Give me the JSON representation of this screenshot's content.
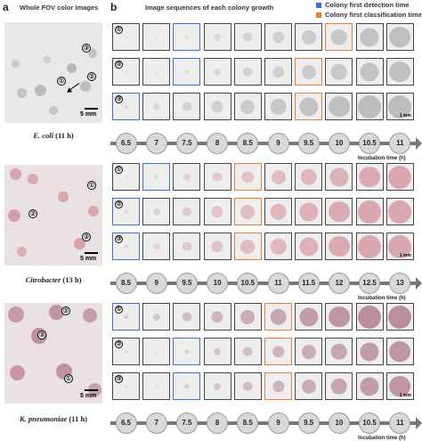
{
  "panel_a": {
    "letter": "a",
    "title": "Whole FOV color images"
  },
  "panel_b": {
    "letter": "b",
    "title": "Image sequences of each colony growth"
  },
  "legend": [
    {
      "label": "Colony first detection time",
      "color": "#3a6fd6"
    },
    {
      "label": "Colony first classification time",
      "color": "#ef7b2c"
    }
  ],
  "scale_bar": "5 mm",
  "tile_scale": "1 mm",
  "incubation_label": "Incubation time (h)",
  "row_markers": [
    "①",
    "②",
    "③"
  ],
  "sections": [
    {
      "organism": "E. coli",
      "time": "(11 h)",
      "times": [
        "6.5",
        "7",
        "7.5",
        "8",
        "8.5",
        "9",
        "9.5",
        "10",
        "10.5",
        "11"
      ],
      "detect_index": [
        2,
        2,
        0
      ],
      "classify_index": [
        7,
        6,
        6
      ],
      "colony_color": "#b9b9b9"
    },
    {
      "organism": "Citrobacter",
      "time": "(13 h)",
      "times": [
        "8.5",
        "9",
        "9.5",
        "10",
        "10.5",
        "11",
        "11.5",
        "12",
        "12.5",
        "13"
      ],
      "detect_index": [
        1,
        0,
        0
      ],
      "classify_index": [
        4,
        4,
        4
      ],
      "colony_color": "#d9a2aa"
    },
    {
      "organism": "K. pneumoniae",
      "time": "(11 h)",
      "times": [
        "6.5",
        "7",
        "7.5",
        "8",
        "8.5",
        "9",
        "9.5",
        "10",
        "10.5",
        "11"
      ],
      "detect_index": [
        0,
        2,
        2
      ],
      "classify_index": [
        5,
        5,
        5
      ],
      "colony_color": "#b68a9c"
    }
  ]
}
